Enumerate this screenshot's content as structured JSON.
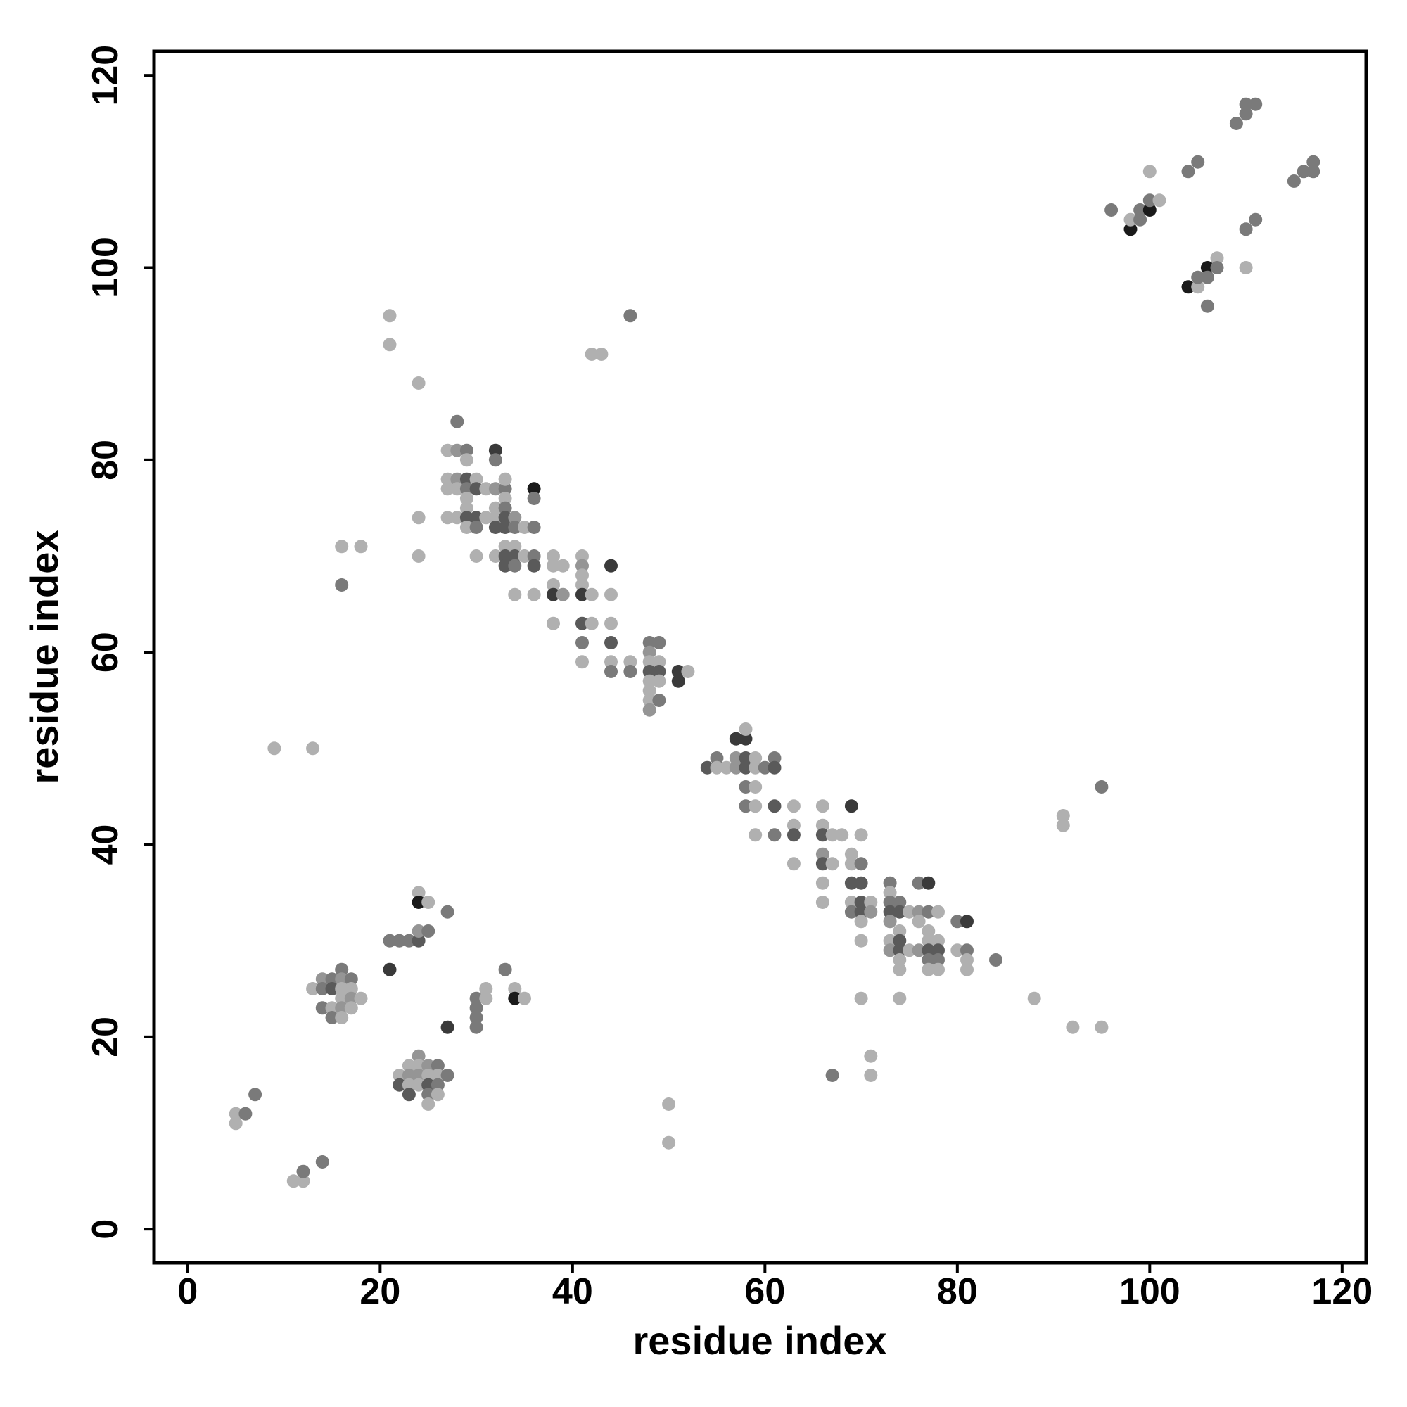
{
  "chart_data": {
    "type": "scatter",
    "title": "",
    "xlabel": "residue index",
    "ylabel": "residue index",
    "xlim": [
      -3.5,
      122.5
    ],
    "ylim": [
      -3.5,
      122.5
    ],
    "x_ticks": [
      0,
      20,
      40,
      60,
      80,
      100,
      120
    ],
    "y_ticks": [
      0,
      20,
      40,
      60,
      80,
      100,
      120
    ],
    "x_tick_labels": [
      "0",
      "20",
      "40",
      "60",
      "80",
      "100",
      "120"
    ],
    "y_tick_labels": [
      "0",
      "20",
      "40",
      "60",
      "80",
      "100",
      "120"
    ],
    "grid": false,
    "legend": "none",
    "shades": [
      "#b0b0b0",
      "#959595",
      "#7a7a7a",
      "#5a5a5a",
      "#3a3a3a",
      "#1a1a1a"
    ],
    "points": [
      [
        5,
        12,
        0
      ],
      [
        5,
        11,
        0
      ],
      [
        6,
        12,
        2
      ],
      [
        7,
        14,
        2
      ],
      [
        11,
        5,
        0
      ],
      [
        12,
        5,
        0
      ],
      [
        12,
        6,
        2
      ],
      [
        14,
        7,
        2
      ],
      [
        9,
        50,
        0
      ],
      [
        13,
        50,
        0
      ],
      [
        13,
        25,
        0
      ],
      [
        14,
        26,
        1
      ],
      [
        14,
        25,
        2
      ],
      [
        14,
        23,
        2
      ],
      [
        15,
        26,
        2
      ],
      [
        15,
        25,
        3
      ],
      [
        15,
        23,
        0
      ],
      [
        15,
        22,
        2
      ],
      [
        16,
        27,
        2
      ],
      [
        16,
        26,
        1
      ],
      [
        16,
        25,
        0
      ],
      [
        16,
        24,
        0
      ],
      [
        16,
        23,
        1
      ],
      [
        16,
        22,
        0
      ],
      [
        17,
        26,
        2
      ],
      [
        17,
        25,
        0
      ],
      [
        17,
        24,
        1
      ],
      [
        17,
        23,
        0
      ],
      [
        18,
        24,
        0
      ],
      [
        16,
        67,
        2
      ],
      [
        16,
        71,
        0
      ],
      [
        18,
        71,
        0
      ],
      [
        21,
        27,
        4
      ],
      [
        21,
        30,
        2
      ],
      [
        22,
        30,
        2
      ],
      [
        23,
        30,
        2
      ],
      [
        24,
        30,
        3
      ],
      [
        24,
        31,
        1
      ],
      [
        25,
        31,
        2
      ],
      [
        24,
        35,
        0
      ],
      [
        24,
        34,
        5
      ],
      [
        25,
        34,
        0
      ],
      [
        27,
        33,
        2
      ],
      [
        22,
        16,
        0
      ],
      [
        22,
        15,
        3
      ],
      [
        23,
        17,
        0
      ],
      [
        23,
        16,
        1
      ],
      [
        23,
        15,
        0
      ],
      [
        23,
        14,
        3
      ],
      [
        24,
        18,
        1
      ],
      [
        24,
        17,
        0
      ],
      [
        24,
        16,
        1
      ],
      [
        24,
        15,
        0
      ],
      [
        25,
        17,
        1
      ],
      [
        25,
        16,
        0
      ],
      [
        25,
        15,
        3
      ],
      [
        25,
        14,
        2
      ],
      [
        25,
        13,
        0
      ],
      [
        26,
        17,
        2
      ],
      [
        26,
        16,
        0
      ],
      [
        26,
        15,
        2
      ],
      [
        26,
        14,
        0
      ],
      [
        27,
        16,
        2
      ],
      [
        27,
        21,
        4
      ],
      [
        30,
        24,
        2
      ],
      [
        30,
        23,
        2
      ],
      [
        30,
        22,
        2
      ],
      [
        30,
        21,
        2
      ],
      [
        31,
        25,
        0
      ],
      [
        31,
        24,
        0
      ],
      [
        33,
        27,
        2
      ],
      [
        34,
        25,
        0
      ],
      [
        34,
        24,
        5
      ],
      [
        35,
        24,
        0
      ],
      [
        21,
        95,
        0
      ],
      [
        21,
        92,
        0
      ],
      [
        24,
        88,
        0
      ],
      [
        24,
        74,
        0
      ],
      [
        24,
        70,
        0
      ],
      [
        28,
        84,
        2
      ],
      [
        27,
        81,
        0
      ],
      [
        28,
        81,
        1
      ],
      [
        29,
        81,
        2
      ],
      [
        29,
        80,
        0
      ],
      [
        27,
        78,
        0
      ],
      [
        28,
        78,
        1
      ],
      [
        29,
        78,
        3
      ],
      [
        30,
        78,
        0
      ],
      [
        27,
        77,
        0
      ],
      [
        28,
        77,
        0
      ],
      [
        29,
        77,
        2
      ],
      [
        30,
        77,
        3
      ],
      [
        31,
        77,
        0
      ],
      [
        32,
        77,
        1
      ],
      [
        33,
        77,
        2
      ],
      [
        29,
        76,
        0
      ],
      [
        33,
        76,
        0
      ],
      [
        29,
        75,
        0
      ],
      [
        32,
        75,
        0
      ],
      [
        33,
        75,
        2
      ],
      [
        27,
        74,
        0
      ],
      [
        28,
        74,
        0
      ],
      [
        29,
        74,
        3
      ],
      [
        30,
        74,
        3
      ],
      [
        31,
        74,
        0
      ],
      [
        32,
        74,
        0
      ],
      [
        33,
        74,
        3
      ],
      [
        34,
        74,
        1
      ],
      [
        29,
        73,
        0
      ],
      [
        30,
        73,
        2
      ],
      [
        32,
        73,
        3
      ],
      [
        33,
        73,
        3
      ],
      [
        34,
        73,
        2
      ],
      [
        35,
        73,
        0
      ],
      [
        36,
        73,
        2
      ],
      [
        32,
        81,
        4
      ],
      [
        32,
        80,
        2
      ],
      [
        33,
        78,
        0
      ],
      [
        36,
        77,
        5
      ],
      [
        36,
        76,
        2
      ],
      [
        30,
        70,
        0
      ],
      [
        32,
        70,
        0
      ],
      [
        33,
        71,
        0
      ],
      [
        33,
        70,
        3
      ],
      [
        33,
        69,
        3
      ],
      [
        34,
        71,
        0
      ],
      [
        34,
        70,
        3
      ],
      [
        34,
        69,
        2
      ],
      [
        35,
        70,
        0
      ],
      [
        36,
        70,
        2
      ],
      [
        36,
        69,
        3
      ],
      [
        34,
        66,
        0
      ],
      [
        36,
        66,
        0
      ],
      [
        38,
        70,
        0
      ],
      [
        38,
        69,
        0
      ],
      [
        38,
        67,
        0
      ],
      [
        38,
        66,
        4
      ],
      [
        39,
        69,
        0
      ],
      [
        39,
        66,
        1
      ],
      [
        38,
        63,
        0
      ],
      [
        41,
        70,
        0
      ],
      [
        41,
        69,
        1
      ],
      [
        41,
        68,
        0
      ],
      [
        41,
        67,
        0
      ],
      [
        41,
        66,
        4
      ],
      [
        42,
        66,
        0
      ],
      [
        44,
        69,
        4
      ],
      [
        44,
        66,
        0
      ],
      [
        41,
        63,
        3
      ],
      [
        42,
        63,
        0
      ],
      [
        44,
        63,
        0
      ],
      [
        41,
        61,
        2
      ],
      [
        41,
        59,
        0
      ],
      [
        44,
        61,
        3
      ],
      [
        44,
        59,
        0
      ],
      [
        44,
        58,
        2
      ],
      [
        46,
        59,
        0
      ],
      [
        46,
        58,
        2
      ],
      [
        48,
        61,
        2
      ],
      [
        48,
        60,
        1
      ],
      [
        48,
        59,
        0
      ],
      [
        48,
        58,
        3
      ],
      [
        48,
        57,
        0
      ],
      [
        48,
        56,
        0
      ],
      [
        48,
        55,
        0
      ],
      [
        48,
        54,
        1
      ],
      [
        49,
        61,
        2
      ],
      [
        49,
        59,
        0
      ],
      [
        49,
        58,
        3
      ],
      [
        49,
        57,
        0
      ],
      [
        49,
        55,
        2
      ],
      [
        51,
        58,
        4
      ],
      [
        51,
        57,
        4
      ],
      [
        52,
        58,
        0
      ],
      [
        42,
        91,
        0
      ],
      [
        43,
        91,
        0
      ],
      [
        46,
        95,
        2
      ],
      [
        50,
        13,
        0
      ],
      [
        50,
        9,
        0
      ],
      [
        54,
        48,
        3
      ],
      [
        55,
        49,
        2
      ],
      [
        55,
        48,
        0
      ],
      [
        56,
        48,
        0
      ],
      [
        57,
        48,
        1
      ],
      [
        57,
        51,
        4
      ],
      [
        58,
        51,
        4
      ],
      [
        58,
        52,
        0
      ],
      [
        57,
        49,
        1
      ],
      [
        58,
        49,
        3
      ],
      [
        58,
        48,
        3
      ],
      [
        58,
        46,
        2
      ],
      [
        58,
        44,
        2
      ],
      [
        59,
        49,
        0
      ],
      [
        59,
        48,
        0
      ],
      [
        59,
        46,
        0
      ],
      [
        59,
        44,
        0
      ],
      [
        59,
        41,
        0
      ],
      [
        60,
        48,
        2
      ],
      [
        61,
        49,
        2
      ],
      [
        61,
        48,
        3
      ],
      [
        61,
        44,
        3
      ],
      [
        61,
        41,
        2
      ],
      [
        63,
        44,
        0
      ],
      [
        63,
        42,
        0
      ],
      [
        63,
        41,
        3
      ],
      [
        63,
        38,
        0
      ],
      [
        66,
        44,
        0
      ],
      [
        66,
        42,
        0
      ],
      [
        66,
        41,
        3
      ],
      [
        66,
        39,
        1
      ],
      [
        66,
        38,
        3
      ],
      [
        66,
        36,
        0
      ],
      [
        66,
        34,
        0
      ],
      [
        67,
        41,
        0
      ],
      [
        67,
        38,
        0
      ],
      [
        67,
        16,
        2
      ],
      [
        68,
        41,
        0
      ],
      [
        69,
        44,
        4
      ],
      [
        69,
        39,
        0
      ],
      [
        69,
        38,
        0
      ],
      [
        69,
        36,
        3
      ],
      [
        69,
        34,
        0
      ],
      [
        69,
        33,
        2
      ],
      [
        70,
        41,
        0
      ],
      [
        70,
        38,
        2
      ],
      [
        70,
        36,
        3
      ],
      [
        70,
        34,
        3
      ],
      [
        70,
        33,
        3
      ],
      [
        70,
        32,
        0
      ],
      [
        70,
        30,
        0
      ],
      [
        70,
        24,
        0
      ],
      [
        71,
        34,
        0
      ],
      [
        71,
        33,
        1
      ],
      [
        71,
        18,
        0
      ],
      [
        71,
        16,
        0
      ],
      [
        73,
        36,
        2
      ],
      [
        73,
        35,
        0
      ],
      [
        73,
        34,
        2
      ],
      [
        73,
        33,
        3
      ],
      [
        73,
        32,
        1
      ],
      [
        73,
        30,
        0
      ],
      [
        73,
        29,
        1
      ],
      [
        74,
        34,
        2
      ],
      [
        74,
        33,
        3
      ],
      [
        74,
        31,
        0
      ],
      [
        74,
        30,
        3
      ],
      [
        74,
        29,
        3
      ],
      [
        74,
        28,
        0
      ],
      [
        74,
        27,
        0
      ],
      [
        74,
        24,
        0
      ],
      [
        75,
        33,
        0
      ],
      [
        75,
        29,
        0
      ],
      [
        76,
        36,
        2
      ],
      [
        76,
        33,
        1
      ],
      [
        76,
        32,
        0
      ],
      [
        76,
        29,
        1
      ],
      [
        77,
        36,
        4
      ],
      [
        77,
        33,
        2
      ],
      [
        77,
        31,
        0
      ],
      [
        77,
        30,
        0
      ],
      [
        77,
        29,
        3
      ],
      [
        77,
        28,
        2
      ],
      [
        77,
        27,
        0
      ],
      [
        78,
        33,
        0
      ],
      [
        78,
        30,
        0
      ],
      [
        78,
        29,
        3
      ],
      [
        78,
        28,
        2
      ],
      [
        78,
        27,
        0
      ],
      [
        80,
        32,
        2
      ],
      [
        80,
        29,
        0
      ],
      [
        81,
        32,
        4
      ],
      [
        81,
        29,
        2
      ],
      [
        81,
        28,
        0
      ],
      [
        81,
        27,
        0
      ],
      [
        84,
        28,
        2
      ],
      [
        88,
        24,
        0
      ],
      [
        91,
        43,
        0
      ],
      [
        91,
        42,
        0
      ],
      [
        92,
        21,
        0
      ],
      [
        95,
        46,
        2
      ],
      [
        95,
        21,
        0
      ],
      [
        96,
        106,
        2
      ],
      [
        98,
        104,
        5
      ],
      [
        98,
        105,
        0
      ],
      [
        99,
        105,
        2
      ],
      [
        99,
        106,
        2
      ],
      [
        100,
        106,
        5
      ],
      [
        100,
        107,
        2
      ],
      [
        100,
        110,
        0
      ],
      [
        101,
        107,
        0
      ],
      [
        104,
        98,
        5
      ],
      [
        104,
        110,
        2
      ],
      [
        105,
        98,
        0
      ],
      [
        105,
        99,
        2
      ],
      [
        105,
        111,
        2
      ],
      [
        106,
        100,
        5
      ],
      [
        106,
        99,
        2
      ],
      [
        106,
        96,
        2
      ],
      [
        107,
        101,
        0
      ],
      [
        107,
        100,
        2
      ],
      [
        109,
        115,
        2
      ],
      [
        110,
        116,
        2
      ],
      [
        110,
        117,
        2
      ],
      [
        110,
        104,
        2
      ],
      [
        110,
        100,
        0
      ],
      [
        111,
        117,
        2
      ],
      [
        111,
        105,
        2
      ],
      [
        115,
        109,
        2
      ],
      [
        116,
        110,
        2
      ],
      [
        117,
        111,
        2
      ],
      [
        117,
        110,
        2
      ]
    ]
  }
}
